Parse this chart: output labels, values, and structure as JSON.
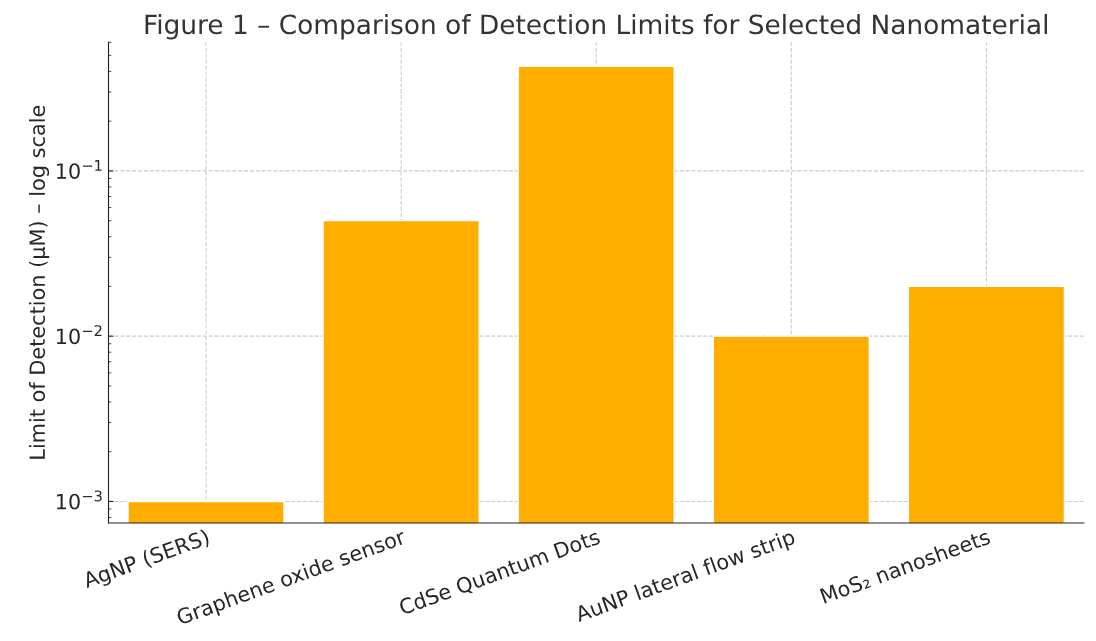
{
  "chart_data": {
    "type": "bar",
    "title": "Figure 1 – Comparison of Detection Limits for Selected Nanomaterial",
    "ylabel": "Limit of Detection (μM) – log scale",
    "categories": [
      "AgNP (SERS)",
      "Graphene oxide sensor",
      "CdSe Quantum Dots",
      "AuNP lateral flow strip",
      "MoS₂ nanosheets"
    ],
    "values": [
      0.001,
      0.05,
      0.43,
      0.01,
      0.02
    ],
    "color": "#ffae00",
    "log": true,
    "ylim": [
      0.00074,
      0.6
    ],
    "yticks": [
      {
        "value": 0.001,
        "label": "10$^{−3}$"
      },
      {
        "value": 0.01,
        "label": "10$^{−2}$"
      },
      {
        "value": 0.1,
        "label": "10$^{−1}$"
      }
    ],
    "grid": true
  }
}
